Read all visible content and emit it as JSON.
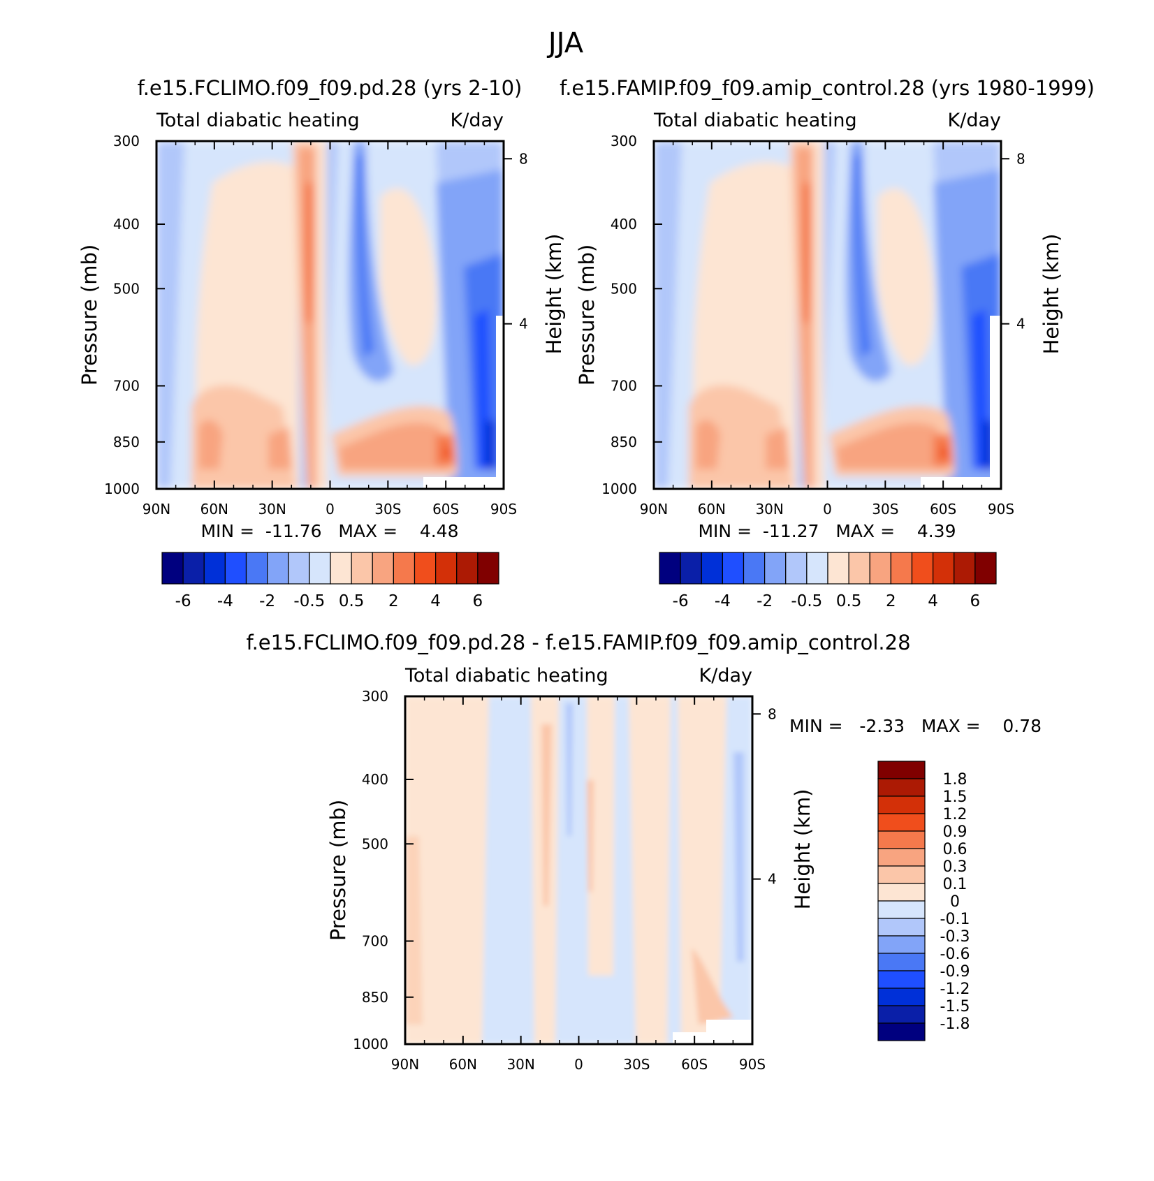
{
  "figure_title": "JJA",
  "panels": [
    {
      "title": "f.e15.FCLIMO.f09_f09.pd.28 (yrs 2-10)",
      "left_label": "Total diabatic heating",
      "right_label": "K/day",
      "min_max": "MIN =  -11.76   MAX =    4.48"
    },
    {
      "title": "f.e15.FAMIP.f09_f09.amip_control.28 (yrs 1980-1999)",
      "left_label": "Total diabatic heating",
      "right_label": "K/day",
      "min_max": "MIN =  -11.27   MAX =    4.39"
    },
    {
      "title": "f.e15.FCLIMO.f09_f09.pd.28 - f.e15.FAMIP.f09_f09.amip_control.28",
      "left_label": "Total diabatic heating",
      "right_label": "K/day",
      "min_max": "MIN =   -2.33   MAX =    0.78"
    }
  ],
  "colors": {
    "cb_top": [
      "#00007f",
      "#0a1fa8",
      "#0030d8",
      "#1f4fff",
      "#4a78f5",
      "#82a4f8",
      "#b1c7fa",
      "#d6e5fc",
      "#fde5d3",
      "#fbc6a9",
      "#f8a480",
      "#f5794c",
      "#f04e1c",
      "#d33008",
      "#ac1a04",
      "#800000"
    ],
    "cb_diff": [
      "#00007f",
      "#0a1fa8",
      "#0030d8",
      "#1f4fff",
      "#4a78f5",
      "#82a4f8",
      "#b1c7fa",
      "#d6e5fc",
      "#fde5d3",
      "#fbc6a9",
      "#f8a480",
      "#f5794c",
      "#f04e1c",
      "#d33008",
      "#ac1a04",
      "#800000"
    ]
  },
  "chart_data": [
    {
      "type": "heatmap",
      "title": "f.e15.FCLIMO.f09_f09.pd.28 (yrs 2-10)",
      "variable": "Total diabatic heating",
      "units": "K/day",
      "xlabel": "",
      "ylabel": "Pressure (mb)",
      "y2label": "Height (km)",
      "x_ticks": [
        "90N",
        "60N",
        "30N",
        "0",
        "30S",
        "60S",
        "90S"
      ],
      "x_range": [
        90,
        -90
      ],
      "y_ticks": [
        300,
        400,
        500,
        700,
        850,
        1000
      ],
      "y_range": [
        300,
        1000
      ],
      "y2_ticks": [
        8,
        4
      ],
      "min": -11.76,
      "max": 4.48,
      "colorbar_labels": [
        "-6",
        "-4",
        "-2",
        "-0.5",
        "0.5",
        "2",
        "4",
        "6"
      ],
      "levels": [
        -6,
        -5,
        -4,
        -3,
        -2,
        -1,
        -0.5,
        0,
        0.5,
        1,
        2,
        3,
        4,
        5,
        6
      ]
    },
    {
      "type": "heatmap",
      "title": "f.e15.FAMIP.f09_f09.amip_control.28 (yrs 1980-1999)",
      "variable": "Total diabatic heating",
      "units": "K/day",
      "xlabel": "",
      "ylabel": "Pressure (mb)",
      "y2label": "Height (km)",
      "x_ticks": [
        "90N",
        "60N",
        "30N",
        "0",
        "30S",
        "60S",
        "90S"
      ],
      "x_range": [
        90,
        -90
      ],
      "y_ticks": [
        300,
        400,
        500,
        700,
        850,
        1000
      ],
      "y_range": [
        300,
        1000
      ],
      "y2_ticks": [
        8,
        4
      ],
      "min": -11.27,
      "max": 4.39,
      "colorbar_labels": [
        "-6",
        "-4",
        "-2",
        "-0.5",
        "0.5",
        "2",
        "4",
        "6"
      ],
      "levels": [
        -6,
        -5,
        -4,
        -3,
        -2,
        -1,
        -0.5,
        0,
        0.5,
        1,
        2,
        3,
        4,
        5,
        6
      ]
    },
    {
      "type": "heatmap",
      "title": "f.e15.FCLIMO.f09_f09.pd.28 - f.e15.FAMIP.f09_f09.amip_control.28",
      "variable": "Total diabatic heating",
      "units": "K/day",
      "xlabel": "",
      "ylabel": "Pressure (mb)",
      "y2label": "Height (km)",
      "x_ticks": [
        "90N",
        "60N",
        "30N",
        "0",
        "30S",
        "60S",
        "90S"
      ],
      "x_range": [
        90,
        -90
      ],
      "y_ticks": [
        300,
        400,
        500,
        700,
        850,
        1000
      ],
      "y_range": [
        300,
        1000
      ],
      "y2_ticks": [
        8,
        4
      ],
      "min": -2.33,
      "max": 0.78,
      "colorbar_labels": [
        "1.8",
        "1.5",
        "1.2",
        "0.9",
        "0.6",
        "0.3",
        "0.1",
        "0",
        "-0.1",
        "-0.3",
        "-0.6",
        "-0.9",
        "-1.2",
        "-1.5",
        "-1.8"
      ],
      "levels": [
        -1.8,
        -1.5,
        -1.2,
        -0.9,
        -0.6,
        -0.3,
        -0.1,
        0,
        0.1,
        0.3,
        0.6,
        0.9,
        1.2,
        1.5,
        1.8
      ]
    }
  ]
}
